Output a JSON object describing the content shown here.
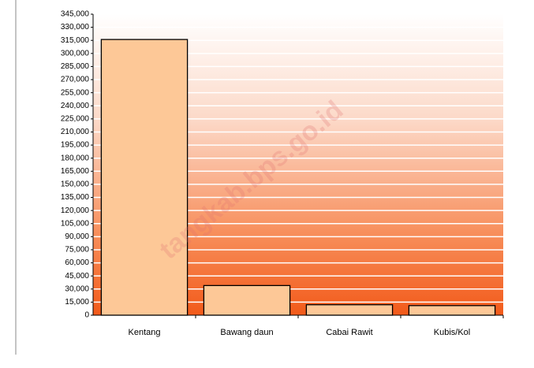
{
  "chart_data": {
    "type": "bar",
    "categories": [
      "Kentang",
      "Bawang daun",
      "Cabai Rawit",
      "Kubis/Kol"
    ],
    "values": [
      316000,
      34000,
      12000,
      11000
    ],
    "color": "#fdc897",
    "ylim": [
      0,
      345000
    ],
    "yticks": [
      0,
      {
        "value": 15000,
        "label": "15,000"
      },
      {
        "value": 30000,
        "label": "30,000"
      },
      {
        "value": 45000,
        "label": "45,000"
      },
      {
        "value": 60000,
        "label": "60,000"
      },
      {
        "value": 75000,
        "label": "75,000"
      },
      {
        "value": 90000,
        "label": "90,000"
      },
      {
        "value": 105000,
        "label": "105,000"
      },
      {
        "value": 120000,
        "label": "120,000"
      },
      {
        "value": 135000,
        "label": "135,000"
      },
      {
        "value": 150000,
        "label": "150,000"
      },
      {
        "value": 165000,
        "label": "165,000"
      },
      {
        "value": 180000,
        "label": "180,000"
      },
      {
        "value": 195000,
        "label": "195,000"
      },
      {
        "value": 210000,
        "label": "210,000"
      },
      {
        "value": 225000,
        "label": "225,000"
      },
      {
        "value": 240000,
        "label": "240,000"
      },
      {
        "value": 255000,
        "label": "255,000"
      },
      {
        "value": 270000,
        "label": "270,000"
      },
      {
        "value": 285000,
        "label": "285,000"
      },
      {
        "value": 300000,
        "label": "300,000"
      },
      {
        "value": 315000,
        "label": "315,000"
      },
      {
        "value": 330000,
        "label": "330,000"
      },
      {
        "value": 345000,
        "label": "345,000"
      }
    ],
    "grid": true,
    "watermark": "tangkab.bps.go.id"
  }
}
